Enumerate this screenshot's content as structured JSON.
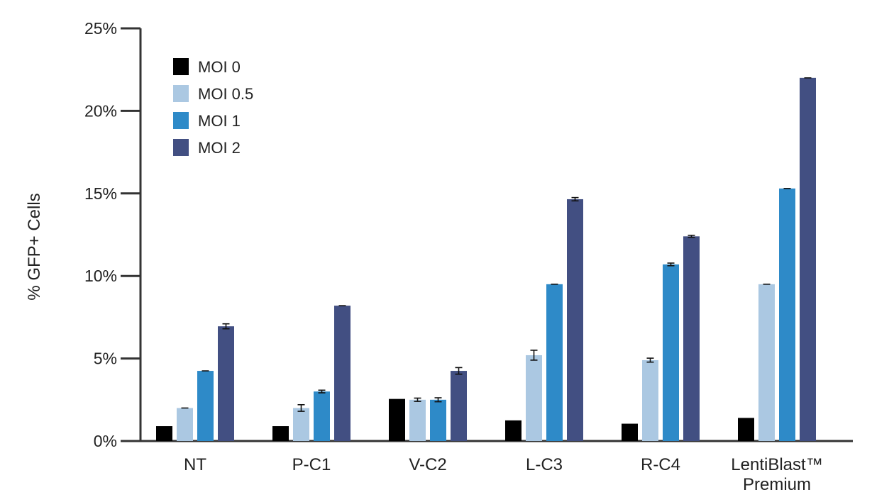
{
  "chart_data": {
    "type": "bar",
    "title": "",
    "xlabel": "",
    "ylabel": "% GFP+ Cells",
    "ylim": [
      0,
      25
    ],
    "yticks": [
      0,
      5,
      10,
      15,
      20,
      25
    ],
    "ytick_labels": [
      "0%",
      "5%",
      "10%",
      "15%",
      "20%",
      "25%"
    ],
    "categories": [
      "NT",
      "P-C1",
      "V-C2",
      "L-C3",
      "R-C4",
      "LentiBlast™ Premium"
    ],
    "category_label_lines": [
      [
        "NT"
      ],
      [
        "P-C1"
      ],
      [
        "V-C2"
      ],
      [
        "L-C3"
      ],
      [
        "R-C4"
      ],
      [
        "LentiBlast™",
        "Premium"
      ]
    ],
    "legend_position": "top-left",
    "grid": false,
    "series": [
      {
        "name": "MOI 0",
        "color": "#000000",
        "values": [
          0.9,
          0.9,
          2.55,
          1.25,
          1.05,
          1.4
        ],
        "errors": [
          0,
          0,
          0,
          0,
          0,
          0
        ]
      },
      {
        "name": "MOI 0.5",
        "color": "#abc8e2",
        "values": [
          2.0,
          2.0,
          2.5,
          5.2,
          4.9,
          9.5
        ],
        "errors": [
          0,
          0.2,
          0.1,
          0.3,
          0.12,
          0
        ]
      },
      {
        "name": "MOI 1",
        "color": "#2e8ac8",
        "values": [
          4.25,
          3.0,
          2.5,
          9.5,
          10.7,
          15.3
        ],
        "errors": [
          0,
          0.08,
          0.12,
          0,
          0.08,
          0
        ]
      },
      {
        "name": "MOI 2",
        "color": "#424f82",
        "values": [
          6.95,
          8.2,
          4.25,
          14.65,
          12.4,
          22.0
        ],
        "errors": [
          0.15,
          0,
          0.2,
          0.1,
          0.06,
          0
        ]
      }
    ]
  }
}
